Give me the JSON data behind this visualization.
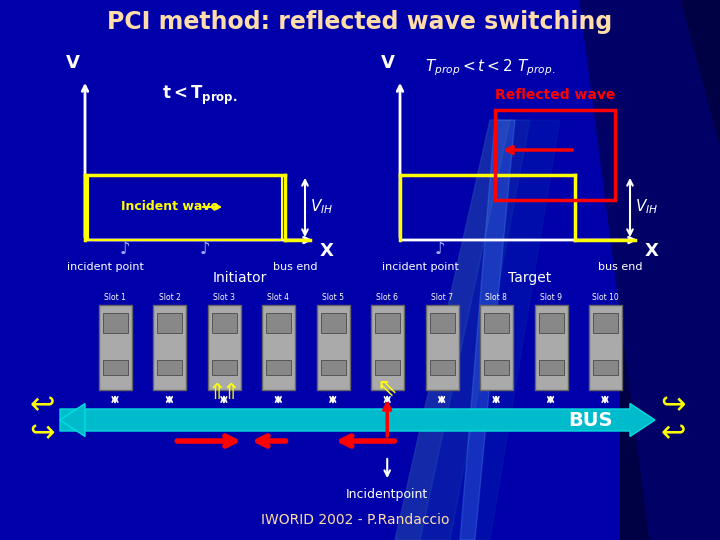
{
  "title": "PCI method: reflected wave switching",
  "bg_dark": "#000080",
  "bg_med": "#0000BB",
  "title_color": "#FFDDAA",
  "yellow": "#FFFF00",
  "red": "#FF0000",
  "cyan_bus": "#00BBCC",
  "white": "#FFFFFF",
  "slot_color": "#AAAAAA",
  "slot_border": "#666666",
  "slots": [
    "Slot 1",
    "Slot 2",
    "Slot 3",
    "Slot 4",
    "Slot 5",
    "Slot 6",
    "Slot 7",
    "Slot 8",
    "Slot 9",
    "Slot 10"
  ],
  "initiator_label": "Initiator",
  "target_label": "Target",
  "bus_label": "BUS",
  "incident_point_label": "Incidentpoint",
  "footer": "IWORID 2002 - P.Randaccio",
  "left_t_label": "t < T",
  "right_t_label": "T",
  "reflected_label": "Reflected wave"
}
